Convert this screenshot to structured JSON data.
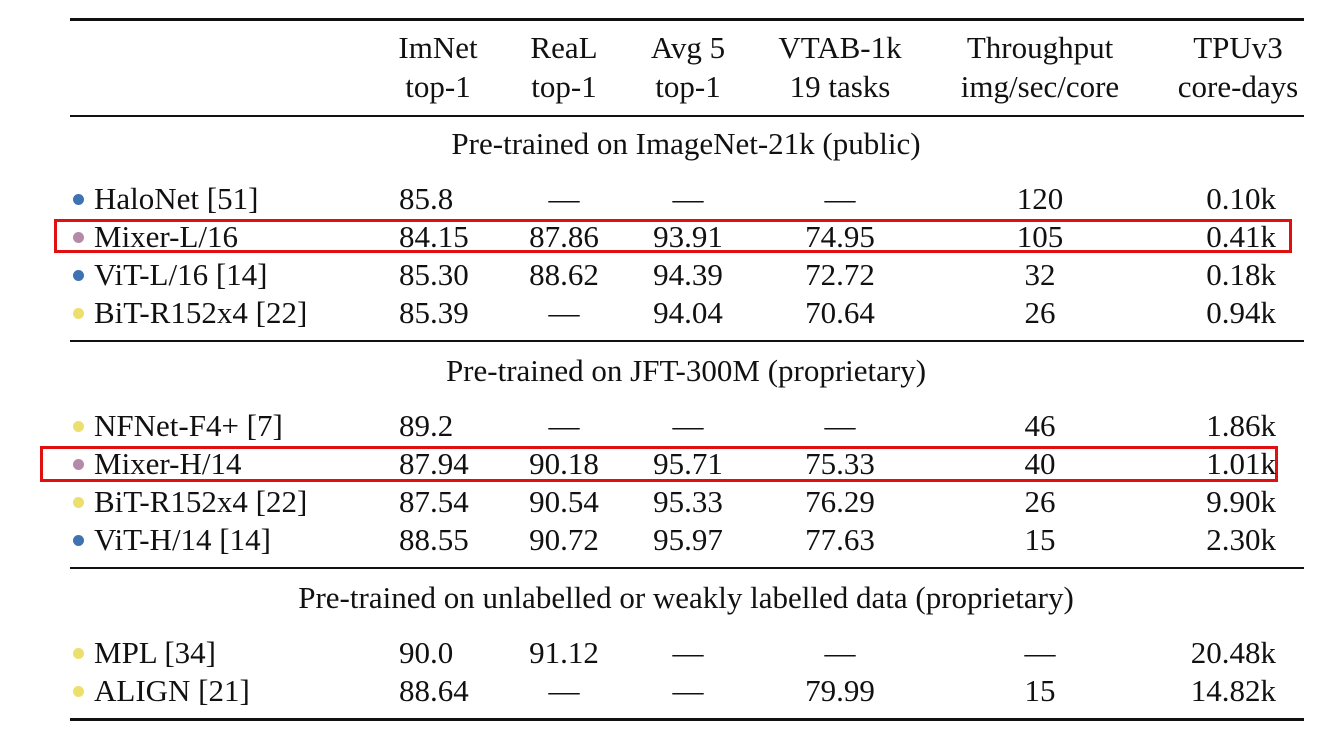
{
  "table": {
    "headers": [
      {
        "line1": "ImNet",
        "line2": "top-1"
      },
      {
        "line1": "ReaL",
        "line2": "top-1"
      },
      {
        "line1": "Avg 5",
        "line2": "top-1"
      },
      {
        "line1": "VTAB-1k",
        "line2": "19 tasks"
      },
      {
        "line1": "Throughput",
        "line2": "img/sec/core"
      },
      {
        "line1": "TPUv3",
        "line2": "core-days"
      }
    ],
    "sections": [
      {
        "title": "Pre-trained on ImageNet-21k (public)",
        "rows": [
          {
            "dot_color": "#3f72b0",
            "model": "HaloNet [51]",
            "imnet": "85.8",
            "real": "—",
            "avg5": "—",
            "vtab": "—",
            "throughput": "120",
            "tpu": "0.10k",
            "highlighted": false
          },
          {
            "dot_color": "#b58aa8",
            "model": "Mixer-L/16",
            "imnet": "84.15",
            "real": "87.86",
            "avg5": "93.91",
            "vtab": "74.95",
            "throughput": "105",
            "tpu": "0.41k",
            "highlighted": true
          },
          {
            "dot_color": "#3f72b0",
            "model": "ViT-L/16 [14]",
            "imnet": "85.30",
            "real": "88.62",
            "avg5": "94.39",
            "vtab": "72.72",
            "throughput": "32",
            "tpu": "0.18k",
            "highlighted": false
          },
          {
            "dot_color": "#ecdf6e",
            "model": "BiT-R152x4 [22]",
            "imnet": "85.39",
            "real": "—",
            "avg5": "94.04",
            "vtab": "70.64",
            "throughput": "26",
            "tpu": "0.94k",
            "highlighted": false
          }
        ]
      },
      {
        "title": "Pre-trained on JFT-300M (proprietary)",
        "rows": [
          {
            "dot_color": "#ecdf6e",
            "model": "NFNet-F4+ [7]",
            "imnet": "89.2",
            "real": "—",
            "avg5": "—",
            "vtab": "—",
            "throughput": "46",
            "tpu": "1.86k",
            "highlighted": false
          },
          {
            "dot_color": "#b58aa8",
            "model": "Mixer-H/14",
            "imnet": "87.94",
            "real": "90.18",
            "avg5": "95.71",
            "vtab": "75.33",
            "throughput": "40",
            "tpu": "1.01k",
            "highlighted": true
          },
          {
            "dot_color": "#ecdf6e",
            "model": "BiT-R152x4 [22]",
            "imnet": "87.54",
            "real": "90.54",
            "avg5": "95.33",
            "vtab": "76.29",
            "throughput": "26",
            "tpu": "9.90k",
            "highlighted": false
          },
          {
            "dot_color": "#3f72b0",
            "model": "ViT-H/14 [14]",
            "imnet": "88.55",
            "real": "90.72",
            "avg5": "95.97",
            "vtab": "77.63",
            "throughput": "15",
            "tpu": "2.30k",
            "highlighted": false
          }
        ]
      },
      {
        "title": "Pre-trained on unlabelled or weakly labelled data (proprietary)",
        "rows": [
          {
            "dot_color": "#ecdf6e",
            "model": "MPL [34]",
            "imnet": "90.0",
            "real": "91.12",
            "avg5": "—",
            "vtab": "—",
            "throughput": "—",
            "tpu": "20.48k",
            "highlighted": false
          },
          {
            "dot_color": "#ecdf6e",
            "model": "ALIGN [21]",
            "imnet": "88.64",
            "real": "—",
            "avg5": "—",
            "vtab": "79.99",
            "throughput": "15",
            "tpu": "14.82k",
            "highlighted": false
          }
        ]
      }
    ]
  }
}
